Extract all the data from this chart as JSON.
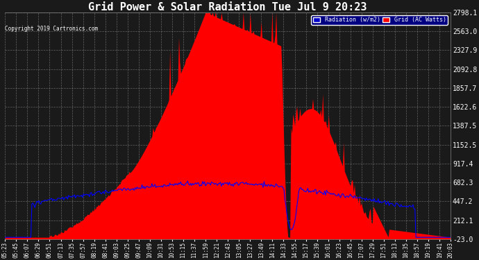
{
  "title": "Grid Power & Solar Radiation Tue Jul 9 20:23",
  "copyright": "Copyright 2019 Cartronics.com",
  "legend_radiation": "Radiation (w/m2)",
  "legend_grid": "Grid (AC Watts)",
  "yticks": [
    -23.0,
    212.1,
    447.2,
    682.3,
    917.4,
    1152.5,
    1387.5,
    1622.6,
    1857.7,
    2092.8,
    2327.9,
    2563.0,
    2798.1
  ],
  "ymin": -23.0,
  "ymax": 2798.1,
  "bg_color": "#1a1a1a",
  "radiation_color": "#0000ff",
  "grid_ac_color": "#ff0000",
  "xtick_labels": [
    "05:23",
    "05:45",
    "06:07",
    "06:29",
    "06:51",
    "07:13",
    "07:35",
    "07:57",
    "08:19",
    "08:41",
    "09:03",
    "09:25",
    "09:47",
    "10:09",
    "10:31",
    "10:53",
    "11:15",
    "11:37",
    "11:59",
    "12:21",
    "12:43",
    "13:05",
    "13:27",
    "13:49",
    "14:11",
    "14:33",
    "14:55",
    "15:17",
    "15:39",
    "16:01",
    "16:23",
    "16:45",
    "17:07",
    "17:29",
    "17:51",
    "18:13",
    "18:35",
    "18:57",
    "19:19",
    "19:41",
    "20:03"
  ]
}
